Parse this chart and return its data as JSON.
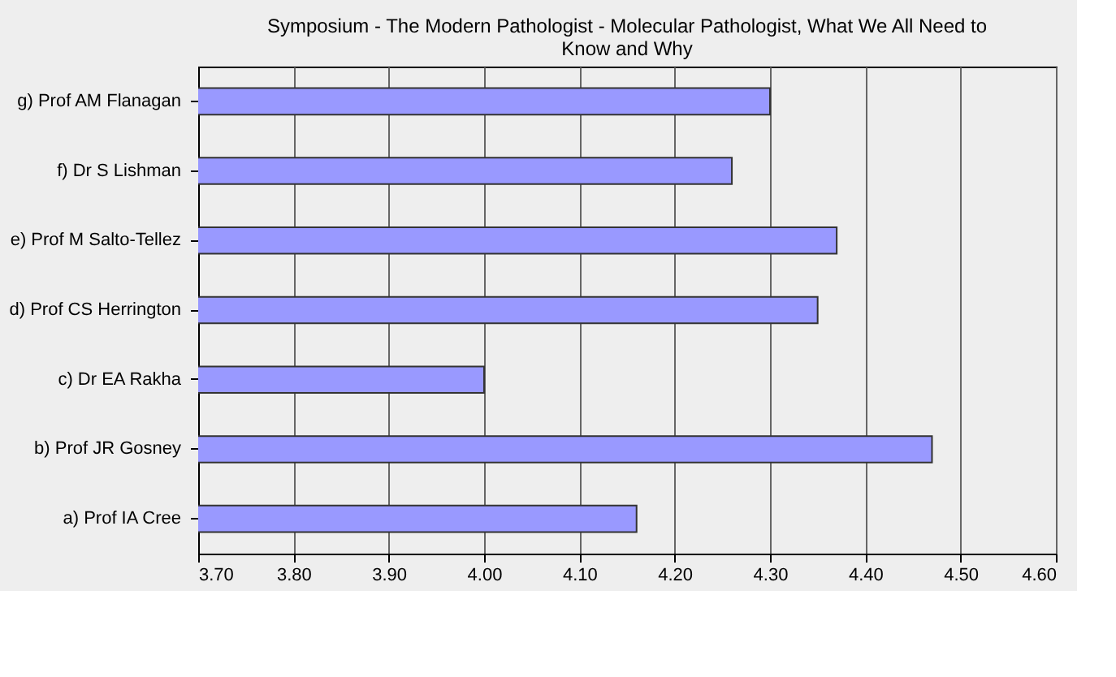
{
  "chart_data": {
    "type": "bar",
    "orientation": "horizontal",
    "title": "Symposium - The Modern Pathologist - Molecular Pathologist, What We All Need to Know and Why",
    "categories": [
      "g) Prof AM Flanagan",
      "f) Dr S Lishman",
      "e) Prof M Salto-Tellez",
      "d) Prof CS Herrington",
      "c) Dr EA Rakha",
      "b) Prof JR Gosney",
      "a) Prof IA Cree"
    ],
    "values": [
      4.3,
      4.26,
      4.37,
      4.35,
      4.0,
      4.47,
      4.16
    ],
    "color": "#9999ff",
    "xlim": [
      3.7,
      4.6
    ],
    "xticks": [
      {
        "value": 3.7,
        "label": "3.70"
      },
      {
        "value": 3.8,
        "label": "3.80"
      },
      {
        "value": 3.9,
        "label": "3.90"
      },
      {
        "value": 4.0,
        "label": "4.00"
      },
      {
        "value": 4.1,
        "label": "4.10"
      },
      {
        "value": 4.2,
        "label": "4.20"
      },
      {
        "value": 4.3,
        "label": "4.30"
      },
      {
        "value": 4.4,
        "label": "4.40"
      },
      {
        "value": 4.5,
        "label": "4.50"
      },
      {
        "value": 4.6,
        "label": "4.60"
      }
    ],
    "grid": "x"
  }
}
